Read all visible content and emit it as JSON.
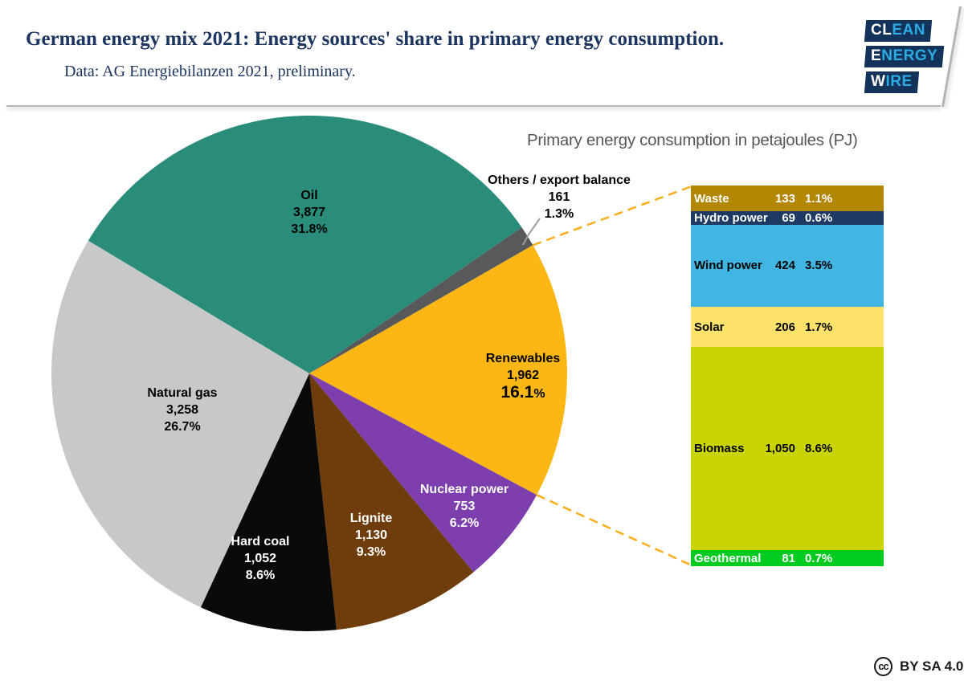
{
  "header": {
    "title": "German energy mix 2021: Energy sources' share in primary energy consumption.",
    "subtitle": "Data: AG Energiebilanzen 2021, preliminary.",
    "text_color": "#1C3660",
    "logo_lines": [
      {
        "highlight": "CL",
        "rest": "EAN"
      },
      {
        "highlight": "E",
        "rest": "NERGY"
      },
      {
        "highlight": "W",
        "rest": "IRE"
      }
    ],
    "logo_colors": {
      "bg": "#14335B",
      "highlight": "#FFFFFF",
      "accent": "#2BACE2"
    }
  },
  "chart_data": {
    "type": "pie",
    "title": "Primary energy consumption in petajoules (PJ)",
    "unit": "PJ",
    "title_color": "#575757",
    "connector_color": "#F9AE1B",
    "callout_color": "#9E9E9E",
    "slices": [
      {
        "label": "Oil",
        "value": 3877,
        "value_text": "3,877",
        "pct": 31.8,
        "pct_text": "31.8%",
        "color": "#2A8D7B",
        "text_color": "#000000"
      },
      {
        "label": "Others / export balance",
        "value": 161,
        "value_text": "161",
        "pct": 1.3,
        "pct_text": "1.3%",
        "color": "#58595B",
        "text_color": "#000000",
        "label_outside": true
      },
      {
        "label": "Renewables",
        "value": 1962,
        "value_text": "1,962",
        "pct": 16.1,
        "pct_text": "16.1%",
        "color": "#FCB714",
        "text_color": "#000000",
        "pct_emphasis": true
      },
      {
        "label": "Nuclear power",
        "value": 753,
        "value_text": "753",
        "pct": 6.2,
        "pct_text": "6.2%",
        "color": "#7C3FAD",
        "text_color": "#FFFFFF"
      },
      {
        "label": "Lignite",
        "value": 1130,
        "value_text": "1,130",
        "pct": 9.3,
        "pct_text": "9.3%",
        "color": "#6F3C0C",
        "text_color": "#FFFFFF"
      },
      {
        "label": "Hard coal",
        "value": 1052,
        "value_text": "1,052",
        "pct": 8.6,
        "pct_text": "8.6%",
        "color": "#0A0A0A",
        "text_color": "#FFFFFF"
      },
      {
        "label": "Natural gas",
        "value": 3258,
        "value_text": "3,258",
        "pct": 26.7,
        "pct_text": "26.7%",
        "color": "#C8C8C8",
        "text_color": "#000000"
      }
    ],
    "breakdown": {
      "parent": "Renewables",
      "segments": [
        {
          "label": "Waste",
          "value": 133,
          "value_text": "133",
          "pct_text": "1.1%",
          "color": "#B18704",
          "text_color": "#FFFFFF"
        },
        {
          "label": "Hydro power",
          "value": 69,
          "value_text": "69",
          "pct_text": "0.6%",
          "color": "#1E3A63",
          "text_color": "#FFFFFF"
        },
        {
          "label": "Wind power",
          "value": 424,
          "value_text": "424",
          "pct_text": "3.5%",
          "color": "#41B6E3",
          "text_color": "#000000"
        },
        {
          "label": "Solar",
          "value": 206,
          "value_text": "206",
          "pct_text": "1.7%",
          "color": "#FBE26B",
          "text_color": "#000000"
        },
        {
          "label": "Biomass",
          "value": 1050,
          "value_text": "1,050",
          "pct_text": "8.6%",
          "color": "#C9D402",
          "text_color": "#000000"
        },
        {
          "label": "Geothermal",
          "value": 81,
          "value_text": "81",
          "pct_text": "0.7%",
          "color": "#02CB1F",
          "text_color": "#FFFFFF"
        }
      ]
    }
  },
  "footer": {
    "cc_letters": "cc",
    "license": "BY SA 4.0"
  }
}
